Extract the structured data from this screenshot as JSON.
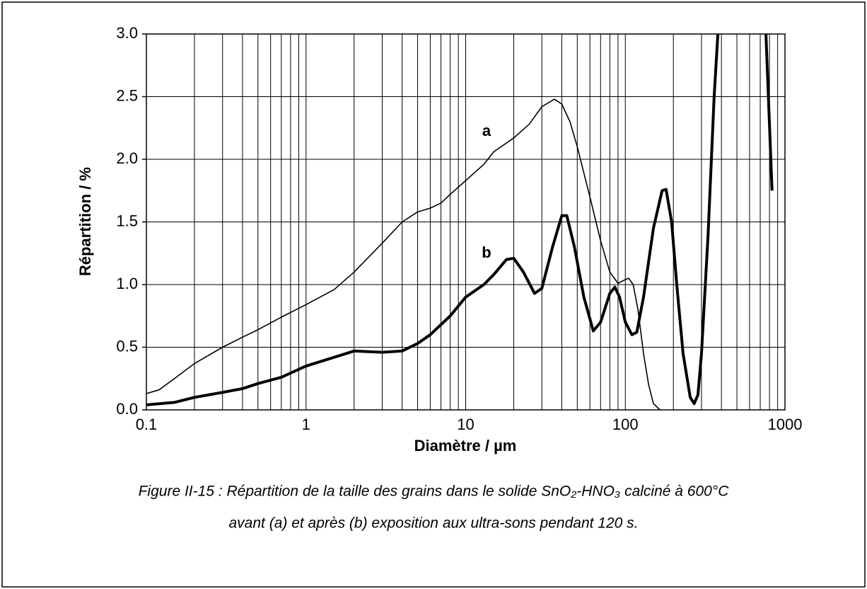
{
  "chart_data": {
    "type": "line",
    "xlabel": "Diamètre / µm",
    "ylabel": "Répartition / %",
    "caption": [
      "Figure II-15 : Répartition de la taille des grains dans le solide SnO₂-HNO₃ calciné à 600°C",
      "avant (a) et après (b) exposition aux ultra-sons pendant 120 s."
    ],
    "xscale": "log",
    "xlim": [
      0.1,
      1000
    ],
    "xticks": [
      0.1,
      1,
      10,
      100,
      1000
    ],
    "ylim": [
      0,
      3
    ],
    "yticks": [
      {
        "value": 0,
        "label": "0.0"
      },
      0.5,
      {
        "value": 1,
        "label": "1.0"
      },
      1.5,
      {
        "value": 2,
        "label": "2.0"
      },
      2.5,
      {
        "value": 3,
        "label": "3.0"
      }
    ],
    "grid": true,
    "minor_grid": true,
    "series": [
      {
        "name": "a",
        "color": "#000000",
        "x": [
          0.1,
          0.12,
          0.15,
          0.2,
          0.3,
          0.4,
          0.5,
          0.7,
          1,
          1.5,
          2,
          3,
          4,
          5,
          6,
          7,
          8,
          10,
          13,
          15,
          20,
          25,
          30,
          36,
          40,
          45,
          50,
          60,
          70,
          80,
          90,
          100,
          105,
          112,
          120,
          130,
          140,
          150,
          165
        ],
        "values": [
          0.13,
          0.16,
          0.25,
          0.37,
          0.5,
          0.58,
          0.64,
          0.74,
          0.84,
          0.96,
          1.1,
          1.33,
          1.5,
          1.58,
          1.61,
          1.65,
          1.72,
          1.83,
          1.96,
          2.06,
          2.17,
          2.28,
          2.42,
          2.48,
          2.44,
          2.3,
          2.1,
          1.7,
          1.35,
          1.1,
          1.01,
          1.04,
          1.05,
          1.0,
          0.8,
          0.45,
          0.2,
          0.05,
          0.0
        ]
      },
      {
        "name": "b",
        "color": "#000000",
        "x": [
          0.1,
          0.15,
          0.2,
          0.3,
          0.4,
          0.5,
          0.7,
          1,
          1.5,
          2,
          3,
          4,
          5,
          6,
          8,
          10,
          13,
          15,
          18,
          20,
          23,
          27,
          30,
          35,
          40,
          43,
          48,
          55,
          63,
          70,
          80,
          86,
          92,
          100,
          110,
          118,
          130,
          150,
          170,
          180,
          195,
          210,
          230,
          255,
          270,
          285,
          300,
          330,
          360,
          380,
          395,
          740,
          760,
          830
        ],
        "values": [
          0.04,
          0.06,
          0.1,
          0.14,
          0.17,
          0.21,
          0.26,
          0.35,
          0.42,
          0.47,
          0.46,
          0.47,
          0.53,
          0.6,
          0.75,
          0.9,
          1.0,
          1.08,
          1.2,
          1.21,
          1.1,
          0.93,
          0.97,
          1.3,
          1.55,
          1.55,
          1.3,
          0.9,
          0.63,
          0.7,
          0.93,
          0.98,
          0.9,
          0.7,
          0.6,
          0.62,
          0.9,
          1.45,
          1.75,
          1.76,
          1.5,
          1.0,
          0.45,
          0.1,
          0.05,
          0.12,
          0.45,
          1.4,
          2.5,
          3.0,
          3.3,
          3.3,
          3.0,
          1.75
        ]
      }
    ]
  }
}
